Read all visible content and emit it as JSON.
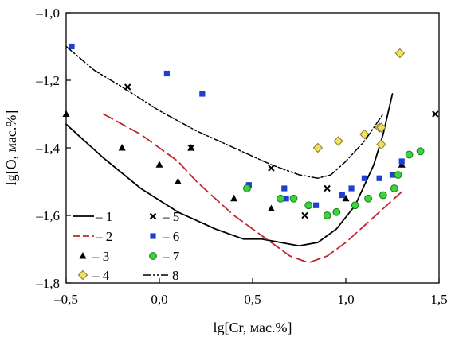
{
  "chart_data": {
    "type": "scatter",
    "title": "",
    "xlabel": "lg[Cr, мас.%]",
    "ylabel": "lg[O, мас.%]",
    "xlim": [
      -0.5,
      1.5
    ],
    "ylim": [
      -1.8,
      -1.0
    ],
    "x_ticks": [
      -0.5,
      0.0,
      0.5,
      1.0,
      1.5
    ],
    "y_ticks": [
      -1.8,
      -1.6,
      -1.4,
      -1.2,
      -1.0
    ],
    "x_tick_labels": [
      "–0,5",
      "0,0",
      "0,5",
      "1,0",
      "1,5"
    ],
    "y_tick_labels": [
      "–1,8",
      "–1,6",
      "–1,4",
      "–1,2",
      "–1,0"
    ],
    "grid": false,
    "legend_position": "bottom-left",
    "colors": {
      "s1": "#000000",
      "s2": "#c0282d",
      "s3": "#000000",
      "s4_fill": "#f0e060",
      "s4_stroke": "#8a7a20",
      "s5": "#000000",
      "s6": "#1f3fd0",
      "s7_fill": "#3cd43c",
      "s7_stroke": "#1a7a1a",
      "s8": "#000000"
    },
    "series": [
      {
        "name": "1",
        "legend_label": "– 1",
        "kind": "line",
        "style": "solid",
        "x": [
          -0.5,
          -0.3,
          -0.1,
          0.1,
          0.3,
          0.45,
          0.55,
          0.65,
          0.75,
          0.85,
          0.95,
          1.05,
          1.15,
          1.2,
          1.25
        ],
        "y": [
          -1.33,
          -1.43,
          -1.52,
          -1.59,
          -1.64,
          -1.67,
          -1.67,
          -1.68,
          -1.69,
          -1.68,
          -1.64,
          -1.57,
          -1.45,
          -1.36,
          -1.24
        ]
      },
      {
        "name": "2",
        "legend_label": "– 2",
        "kind": "line",
        "style": "dashed",
        "x": [
          -0.3,
          -0.1,
          0.0,
          0.1,
          0.2,
          0.3,
          0.4,
          0.5,
          0.6,
          0.7,
          0.8,
          0.9,
          1.0,
          1.1,
          1.2,
          1.3
        ],
        "y": [
          -1.3,
          -1.36,
          -1.4,
          -1.44,
          -1.5,
          -1.55,
          -1.6,
          -1.64,
          -1.68,
          -1.72,
          -1.74,
          -1.72,
          -1.68,
          -1.63,
          -1.58,
          -1.53
        ]
      },
      {
        "name": "3",
        "legend_label": "– 3",
        "kind": "scatter",
        "marker": "triangle",
        "x": [
          -0.5,
          -0.2,
          0.0,
          0.1,
          0.17,
          0.4,
          0.6,
          1.0,
          1.3
        ],
        "y": [
          -1.3,
          -1.4,
          -1.45,
          -1.5,
          -1.4,
          -1.55,
          -1.58,
          -1.55,
          -1.45
        ]
      },
      {
        "name": "4",
        "legend_label": "– 4",
        "kind": "scatter",
        "marker": "diamond",
        "x": [
          0.85,
          0.96,
          1.1,
          1.18,
          1.19,
          1.19,
          1.29
        ],
        "y": [
          -1.4,
          -1.38,
          -1.36,
          -1.34,
          -1.34,
          -1.39,
          -1.12
        ]
      },
      {
        "name": "5",
        "legend_label": "– 5",
        "kind": "scatter",
        "marker": "cross",
        "x": [
          -0.17,
          0.17,
          0.6,
          0.78,
          0.9,
          1.48
        ],
        "y": [
          -1.22,
          -1.4,
          -1.46,
          -1.6,
          -1.52,
          -1.3
        ]
      },
      {
        "name": "6",
        "legend_label": "– 6",
        "kind": "scatter",
        "marker": "square",
        "x": [
          -0.47,
          0.04,
          0.23,
          0.48,
          0.67,
          0.68,
          0.84,
          0.98,
          1.03,
          1.1,
          1.18,
          1.25,
          1.3
        ],
        "y": [
          -1.1,
          -1.18,
          -1.24,
          -1.51,
          -1.52,
          -1.55,
          -1.57,
          -1.54,
          -1.52,
          -1.49,
          -1.49,
          -1.48,
          -1.44
        ]
      },
      {
        "name": "7",
        "legend_label": "– 7",
        "kind": "scatter",
        "marker": "circle",
        "x": [
          0.47,
          0.65,
          0.72,
          0.8,
          0.9,
          0.95,
          1.05,
          1.12,
          1.2,
          1.26,
          1.28,
          1.34,
          1.4
        ],
        "y": [
          -1.52,
          -1.55,
          -1.55,
          -1.57,
          -1.6,
          -1.59,
          -1.57,
          -1.55,
          -1.54,
          -1.52,
          -1.48,
          -1.42,
          -1.41
        ]
      },
      {
        "name": "8",
        "legend_label": "8",
        "kind": "line",
        "style": "dashdotdot",
        "x": [
          -0.5,
          -0.35,
          -0.2,
          0.0,
          0.2,
          0.4,
          0.6,
          0.75,
          0.85,
          0.92,
          1.0,
          1.1,
          1.2
        ],
        "y": [
          -1.1,
          -1.17,
          -1.22,
          -1.29,
          -1.35,
          -1.4,
          -1.45,
          -1.48,
          -1.49,
          -1.48,
          -1.44,
          -1.38,
          -1.3
        ]
      }
    ]
  }
}
